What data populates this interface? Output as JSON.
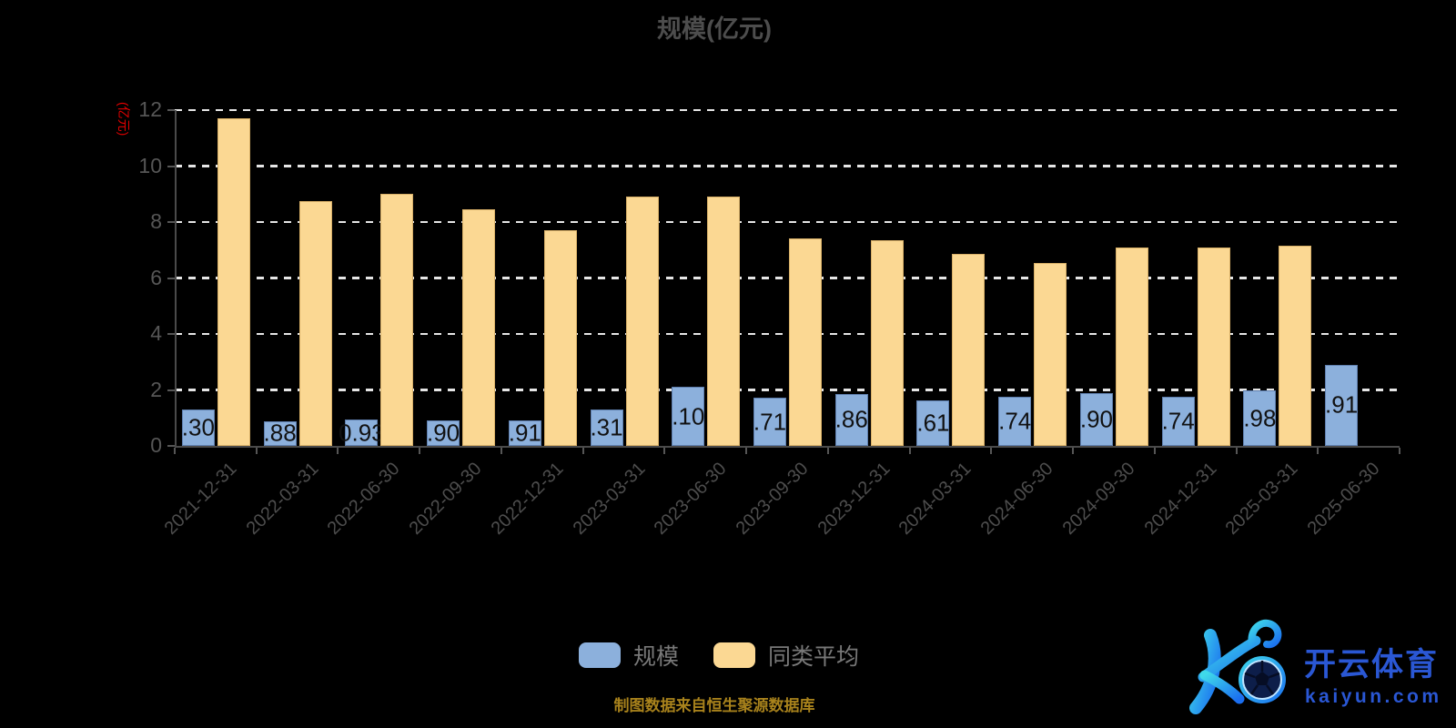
{
  "title": "规模(亿元)",
  "y_axis": {
    "unit_label": "(亿元)",
    "ticks": [
      0,
      2,
      4,
      6,
      8,
      10,
      12
    ]
  },
  "chart_data": {
    "type": "bar",
    "title": "规模(亿元)",
    "categories": [
      "2021-12-31",
      "2022-03-31",
      "2022-06-30",
      "2022-09-30",
      "2022-12-31",
      "2023-03-31",
      "2023-06-30",
      "2023-09-30",
      "2023-12-31",
      "2024-03-31",
      "2024-06-30",
      "2024-09-30",
      "2024-12-31",
      "2025-03-31",
      "2025-06-30"
    ],
    "series": [
      {
        "name": "规模",
        "color": "#8cb0dc",
        "values": [
          1.3,
          0.88,
          0.93,
          0.9,
          0.91,
          1.31,
          2.1,
          1.71,
          1.86,
          1.61,
          1.74,
          1.9,
          1.74,
          1.98,
          2.91
        ],
        "display_labels": [
          ".30",
          ".88",
          "0.93",
          ".90",
          ".91",
          ".31",
          ".10",
          ".71",
          ".86",
          ".61",
          ".74",
          ".90",
          ".74",
          ".98",
          ".91"
        ]
      },
      {
        "name": "同类平均",
        "color": "#fbd893",
        "values": [
          11.7,
          8.75,
          9.0,
          8.45,
          7.7,
          8.9,
          8.9,
          7.4,
          7.35,
          6.85,
          6.55,
          7.1,
          7.1,
          7.15,
          null
        ]
      }
    ],
    "ylabel": "(亿元)",
    "ylim": [
      0,
      12
    ],
    "grid": "horizontal dashed white lines",
    "legend_position": "bottom-center"
  },
  "legend": {
    "items": [
      {
        "label": "规模",
        "color": "#8cb0dc"
      },
      {
        "label": "同类平均",
        "color": "#fbd893"
      }
    ]
  },
  "source_note": "制图数据来自恒生聚源数据库",
  "logo": {
    "brand_cn": "开云体育",
    "domain": "kaiyun.com"
  },
  "colors": {
    "background": "#000000",
    "title": "#4d4d4d",
    "axis": "#4a4a4a",
    "tick_label": "#565656",
    "x_label": "#4d4d4d",
    "grid": "#e6e6e6",
    "unit_label": "#e00000",
    "bar_blue": "#8cb0dc",
    "bar_yellow": "#fbd893",
    "bar_value_text": "#111111",
    "legend_text": "#787878",
    "source_text": "#a8821c",
    "logo_text": "#2a57d4",
    "logo_gradient_start": "#3fd9ea",
    "logo_gradient_end": "#1a6ef0"
  }
}
